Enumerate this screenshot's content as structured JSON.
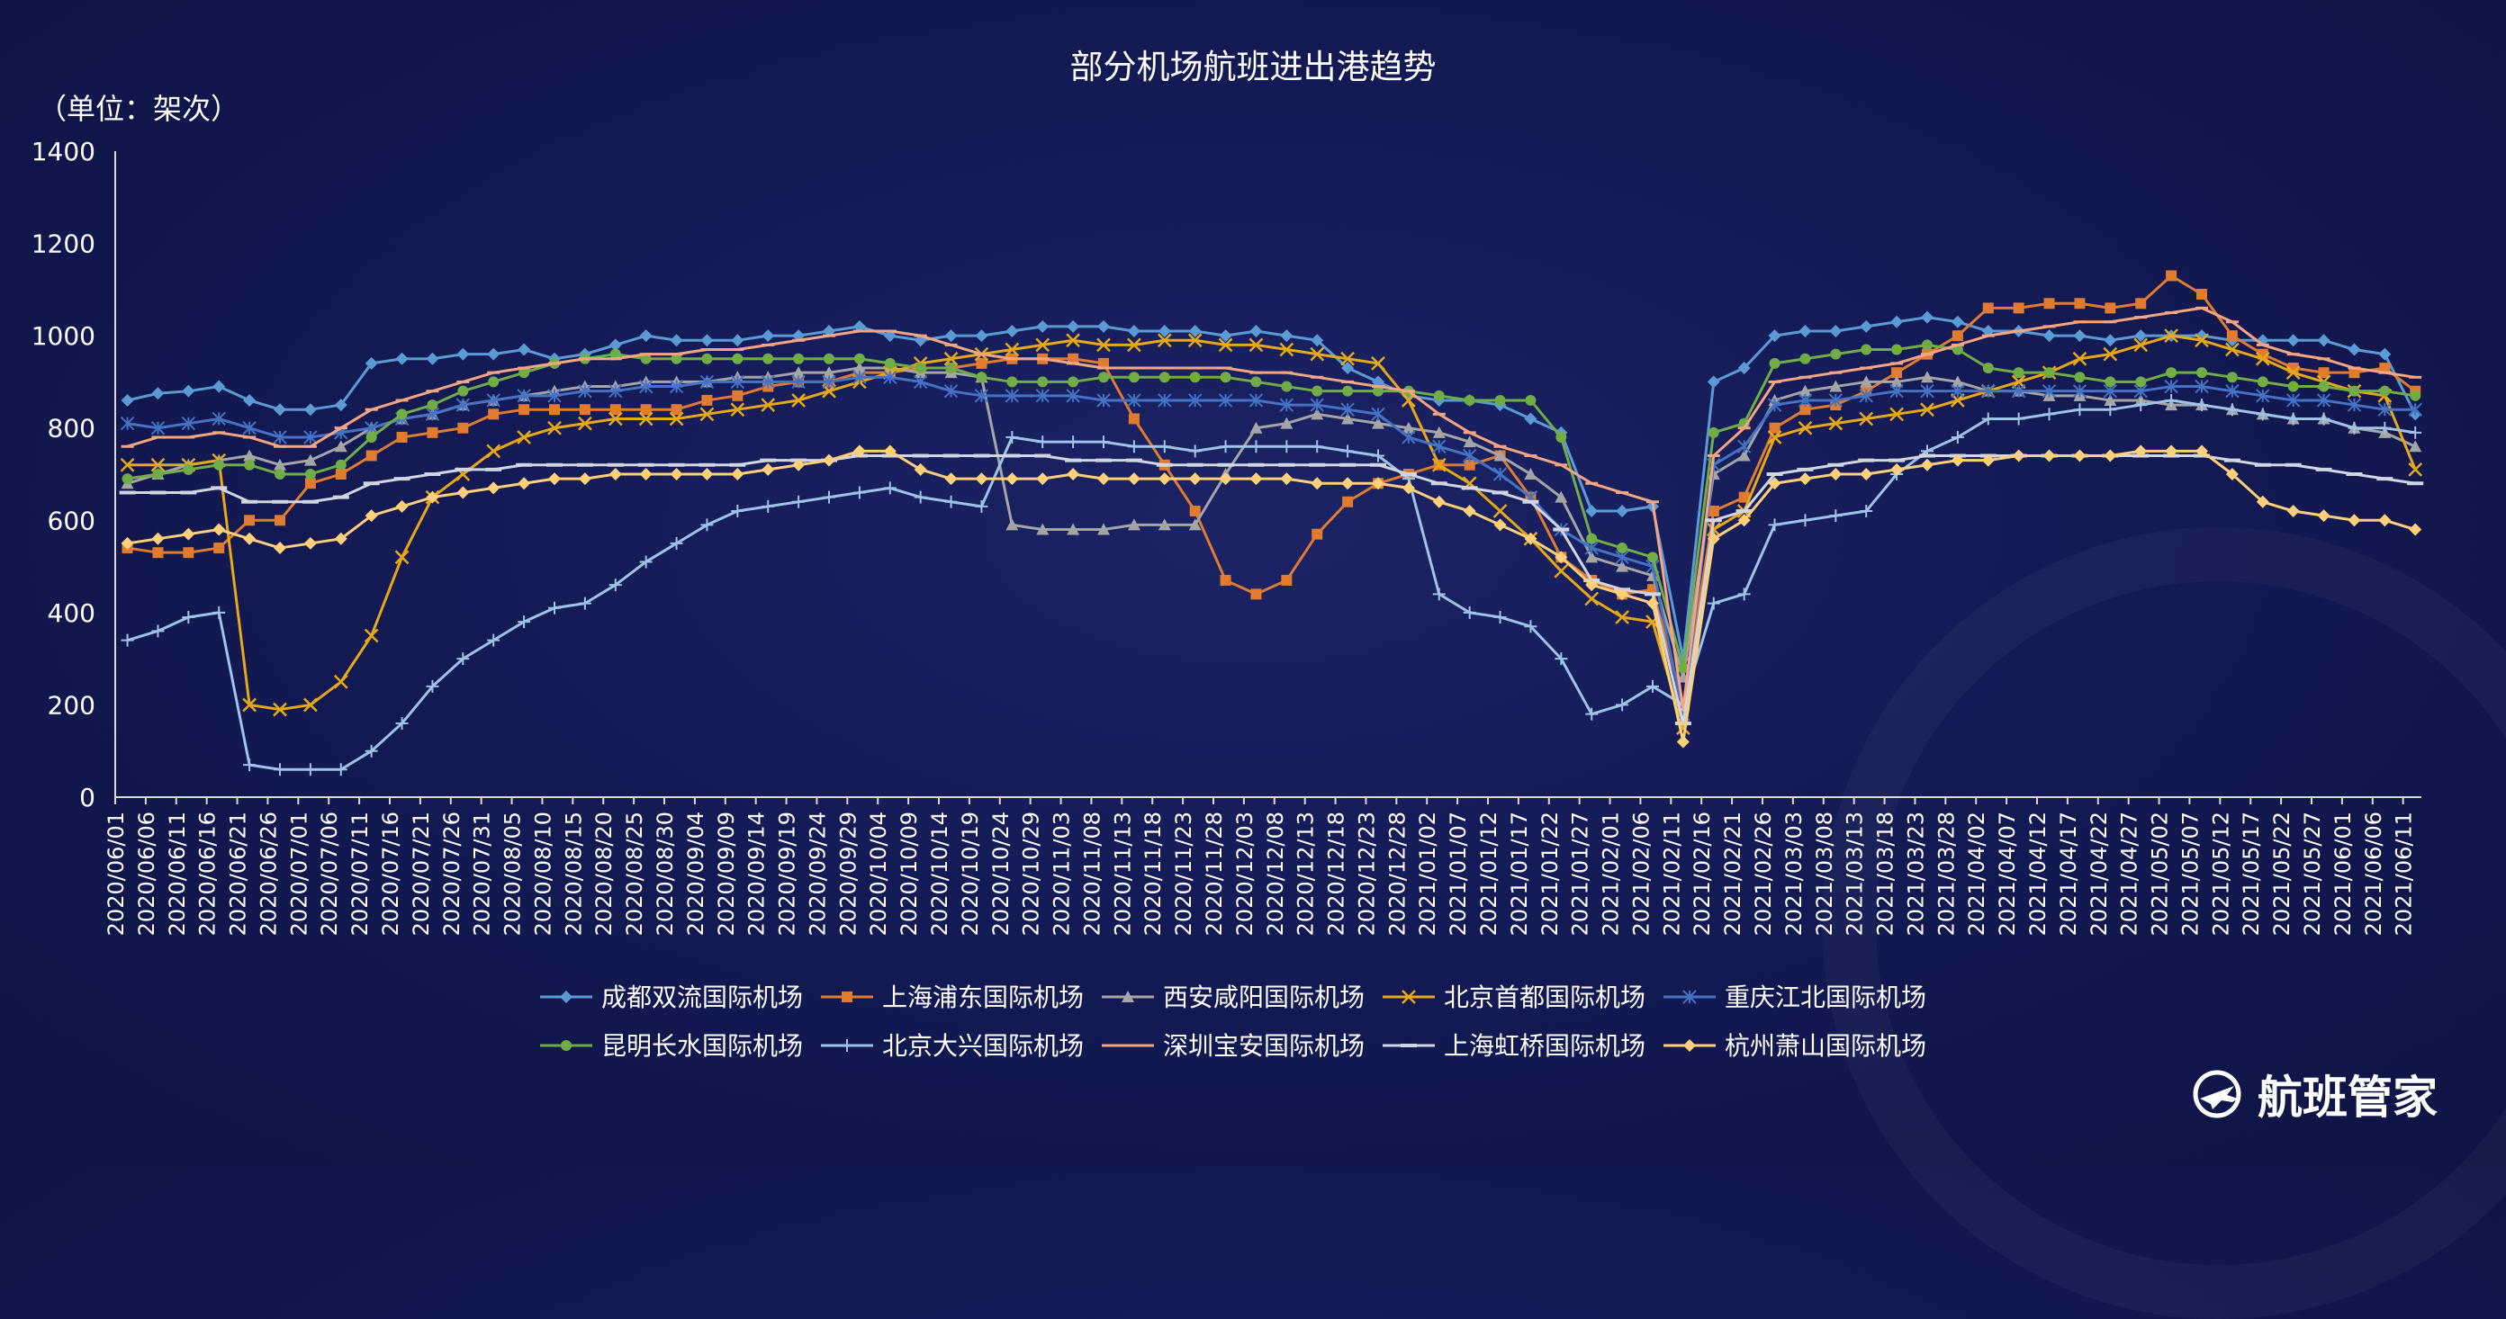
{
  "header": {
    "title": "部分机场航班进出港趋势",
    "unit": "（单位：架次）"
  },
  "brand": {
    "name": "航班管家",
    "icon": "globe-plane-icon"
  },
  "chart_data": {
    "type": "line",
    "title": "部分机场航班进出港趋势",
    "ylabel": "（单位：架次）",
    "xlabel": "",
    "ylim": [
      0,
      1400
    ],
    "yticks": [
      0,
      200,
      400,
      600,
      800,
      1000,
      1200,
      1400
    ],
    "grid": false,
    "legend_position": "bottom",
    "x_start": "2020-06-01",
    "x_end": "2021-06-14",
    "categories": [
      "2020/06/01",
      "2020/06/06",
      "2020/06/11",
      "2020/06/16",
      "2020/06/21",
      "2020/06/26",
      "2020/07/01",
      "2020/07/06",
      "2020/07/11",
      "2020/07/16",
      "2020/07/21",
      "2020/07/26",
      "2020/07/31",
      "2020/08/05",
      "2020/08/10",
      "2020/08/15",
      "2020/08/20",
      "2020/08/25",
      "2020/08/30",
      "2020/09/04",
      "2020/09/09",
      "2020/09/14",
      "2020/09/19",
      "2020/09/24",
      "2020/09/29",
      "2020/10/04",
      "2020/10/09",
      "2020/10/14",
      "2020/10/19",
      "2020/10/24",
      "2020/10/29",
      "2020/11/03",
      "2020/11/08",
      "2020/11/13",
      "2020/11/18",
      "2020/11/23",
      "2020/11/28",
      "2020/12/03",
      "2020/12/08",
      "2020/12/13",
      "2020/12/18",
      "2020/12/23",
      "2020/12/28",
      "2021/01/02",
      "2021/01/07",
      "2021/01/12",
      "2021/01/17",
      "2021/01/22",
      "2021/01/27",
      "2021/02/01",
      "2021/02/06",
      "2021/02/11",
      "2021/02/16",
      "2021/02/21",
      "2021/02/26",
      "2021/03/03",
      "2021/03/08",
      "2021/03/13",
      "2021/03/18",
      "2021/03/23",
      "2021/03/28",
      "2021/04/02",
      "2021/04/07",
      "2021/04/12",
      "2021/04/17",
      "2021/04/22",
      "2021/04/27",
      "2021/05/02",
      "2021/05/07",
      "2021/05/12",
      "2021/05/17",
      "2021/05/22",
      "2021/05/27",
      "2021/06/01",
      "2021/06/06",
      "2021/06/11"
    ],
    "series": [
      {
        "name": "成都双流国际机场",
        "color": "#5b9bd5",
        "marker": "diamond",
        "values": [
          860,
          875,
          880,
          890,
          860,
          840,
          840,
          850,
          940,
          950,
          950,
          960,
          960,
          970,
          950,
          960,
          980,
          1000,
          990,
          990,
          990,
          1000,
          1000,
          1010,
          1020,
          1000,
          990,
          1000,
          1000,
          1010,
          1020,
          1020,
          1020,
          1010,
          1010,
          1010,
          1000,
          1010,
          1000,
          990,
          930,
          900,
          870,
          860,
          860,
          850,
          820,
          790,
          620,
          620,
          630,
          300,
          900,
          930,
          1000,
          1010,
          1010,
          1020,
          1030,
          1040,
          1030,
          1010,
          1010,
          1000,
          1000,
          990,
          1000,
          1000,
          1000,
          990,
          990,
          990,
          990,
          970,
          960,
          830
        ]
      },
      {
        "name": "上海浦东国际机场",
        "color": "#e07b2f",
        "marker": "square",
        "values": [
          540,
          530,
          530,
          540,
          600,
          600,
          680,
          700,
          740,
          780,
          790,
          800,
          830,
          840,
          840,
          840,
          840,
          840,
          840,
          860,
          870,
          890,
          900,
          900,
          920,
          920,
          930,
          930,
          940,
          950,
          950,
          950,
          940,
          820,
          720,
          620,
          470,
          440,
          470,
          570,
          640,
          680,
          700,
          720,
          720,
          740,
          650,
          520,
          470,
          440,
          450,
          200,
          620,
          650,
          800,
          840,
          850,
          880,
          920,
          960,
          1000,
          1060,
          1060,
          1070,
          1070,
          1060,
          1070,
          1130,
          1090,
          1000,
          960,
          930,
          920,
          920,
          930,
          880
        ]
      },
      {
        "name": "西安咸阳国际机场",
        "color": "#a5a5a5",
        "marker": "triangle",
        "values": [
          680,
          700,
          720,
          730,
          740,
          720,
          730,
          760,
          800,
          820,
          830,
          850,
          860,
          870,
          880,
          890,
          890,
          900,
          900,
          900,
          910,
          910,
          920,
          920,
          930,
          930,
          920,
          920,
          910,
          590,
          580,
          580,
          580,
          590,
          590,
          590,
          700,
          800,
          810,
          830,
          820,
          810,
          800,
          790,
          770,
          740,
          700,
          650,
          520,
          500,
          480,
          260,
          700,
          740,
          860,
          880,
          890,
          900,
          900,
          910,
          900,
          880,
          880,
          870,
          870,
          860,
          860,
          850,
          850,
          840,
          830,
          820,
          820,
          800,
          790,
          760
        ]
      },
      {
        "name": "北京首都国际机场",
        "color": "#e6a817",
        "marker": "x",
        "values": [
          720,
          720,
          720,
          730,
          200,
          190,
          200,
          250,
          350,
          520,
          650,
          700,
          750,
          780,
          800,
          810,
          820,
          820,
          820,
          830,
          840,
          850,
          860,
          880,
          900,
          920,
          940,
          950,
          960,
          970,
          980,
          990,
          980,
          980,
          990,
          990,
          980,
          980,
          970,
          960,
          950,
          940,
          860,
          720,
          680,
          620,
          560,
          490,
          430,
          390,
          380,
          150,
          580,
          620,
          780,
          800,
          810,
          820,
          830,
          840,
          860,
          880,
          900,
          920,
          950,
          960,
          980,
          1000,
          990,
          970,
          950,
          920,
          900,
          880,
          870,
          710
        ]
      },
      {
        "name": "重庆江北国际机场",
        "color": "#4472c4",
        "marker": "star",
        "values": [
          810,
          800,
          810,
          820,
          800,
          780,
          780,
          790,
          800,
          820,
          830,
          850,
          860,
          870,
          870,
          880,
          880,
          890,
          890,
          900,
          900,
          900,
          900,
          900,
          910,
          910,
          900,
          880,
          870,
          870,
          870,
          870,
          860,
          860,
          860,
          860,
          860,
          860,
          850,
          850,
          840,
          830,
          780,
          760,
          740,
          700,
          650,
          580,
          540,
          520,
          500,
          180,
          720,
          760,
          850,
          860,
          860,
          870,
          880,
          880,
          880,
          880,
          880,
          880,
          880,
          880,
          880,
          890,
          890,
          880,
          870,
          860,
          860,
          850,
          840,
          840
        ]
      },
      {
        "name": "昆明长水国际机场",
        "color": "#70ad47",
        "marker": "circle",
        "values": [
          690,
          700,
          710,
          720,
          720,
          700,
          700,
          720,
          780,
          830,
          850,
          880,
          900,
          920,
          940,
          950,
          960,
          950,
          950,
          950,
          950,
          950,
          950,
          950,
          950,
          940,
          930,
          930,
          910,
          900,
          900,
          900,
          910,
          910,
          910,
          910,
          910,
          900,
          890,
          880,
          880,
          880,
          880,
          870,
          860,
          860,
          860,
          780,
          560,
          540,
          520,
          280,
          790,
          810,
          940,
          950,
          960,
          970,
          970,
          980,
          970,
          930,
          920,
          920,
          910,
          900,
          900,
          920,
          920,
          910,
          900,
          890,
          890,
          880,
          880,
          870
        ]
      },
      {
        "name": "北京大兴国际机场",
        "color": "#9dc3e6",
        "marker": "plus",
        "values": [
          340,
          360,
          390,
          400,
          70,
          60,
          60,
          60,
          100,
          160,
          240,
          300,
          340,
          380,
          410,
          420,
          460,
          510,
          550,
          590,
          620,
          630,
          640,
          650,
          660,
          670,
          650,
          640,
          630,
          780,
          770,
          770,
          770,
          760,
          760,
          750,
          760,
          760,
          760,
          760,
          750,
          740,
          690,
          440,
          400,
          390,
          370,
          300,
          180,
          200,
          240,
          200,
          420,
          440,
          590,
          600,
          610,
          620,
          700,
          750,
          780,
          820,
          820,
          830,
          840,
          840,
          850,
          860,
          850,
          840,
          830,
          820,
          820,
          800,
          800,
          790
        ]
      },
      {
        "name": "深圳宝安国际机场",
        "color": "#f4a582",
        "marker": "line",
        "values": [
          760,
          780,
          780,
          790,
          780,
          760,
          760,
          800,
          840,
          860,
          880,
          900,
          920,
          930,
          940,
          950,
          950,
          960,
          960,
          970,
          970,
          980,
          990,
          1000,
          1010,
          1010,
          1000,
          980,
          960,
          950,
          950,
          940,
          930,
          930,
          930,
          930,
          930,
          920,
          920,
          910,
          900,
          890,
          880,
          830,
          790,
          760,
          740,
          720,
          680,
          660,
          640,
          190,
          740,
          800,
          900,
          910,
          920,
          930,
          940,
          960,
          980,
          1000,
          1010,
          1020,
          1030,
          1030,
          1040,
          1050,
          1060,
          1030,
          980,
          960,
          950,
          930,
          920,
          910
        ]
      },
      {
        "name": "上海虹桥国际机场",
        "color": "#d0d5e0",
        "marker": "dash",
        "values": [
          660,
          660,
          660,
          670,
          640,
          640,
          640,
          650,
          680,
          690,
          700,
          710,
          710,
          720,
          720,
          720,
          720,
          720,
          720,
          720,
          720,
          730,
          730,
          730,
          740,
          740,
          740,
          740,
          740,
          740,
          740,
          730,
          730,
          730,
          720,
          720,
          720,
          720,
          720,
          720,
          720,
          720,
          700,
          680,
          670,
          660,
          640,
          580,
          470,
          450,
          440,
          160,
          600,
          620,
          700,
          710,
          720,
          730,
          730,
          740,
          740,
          740,
          740,
          740,
          740,
          740,
          740,
          740,
          740,
          730,
          720,
          720,
          710,
          700,
          690,
          680
        ]
      },
      {
        "name": "杭州萧山国际机场",
        "color": "#ffd07a",
        "marker": "diamond",
        "values": [
          550,
          560,
          570,
          580,
          560,
          540,
          550,
          560,
          610,
          630,
          650,
          660,
          670,
          680,
          690,
          690,
          700,
          700,
          700,
          700,
          700,
          710,
          720,
          730,
          750,
          750,
          710,
          690,
          690,
          690,
          690,
          700,
          690,
          690,
          690,
          690,
          690,
          690,
          690,
          680,
          680,
          680,
          670,
          640,
          620,
          590,
          560,
          520,
          460,
          440,
          420,
          120,
          560,
          600,
          680,
          690,
          700,
          700,
          710,
          720,
          730,
          730,
          740,
          740,
          740,
          740,
          750,
          750,
          750,
          700,
          640,
          620,
          610,
          600,
          600,
          580
        ]
      }
    ]
  }
}
